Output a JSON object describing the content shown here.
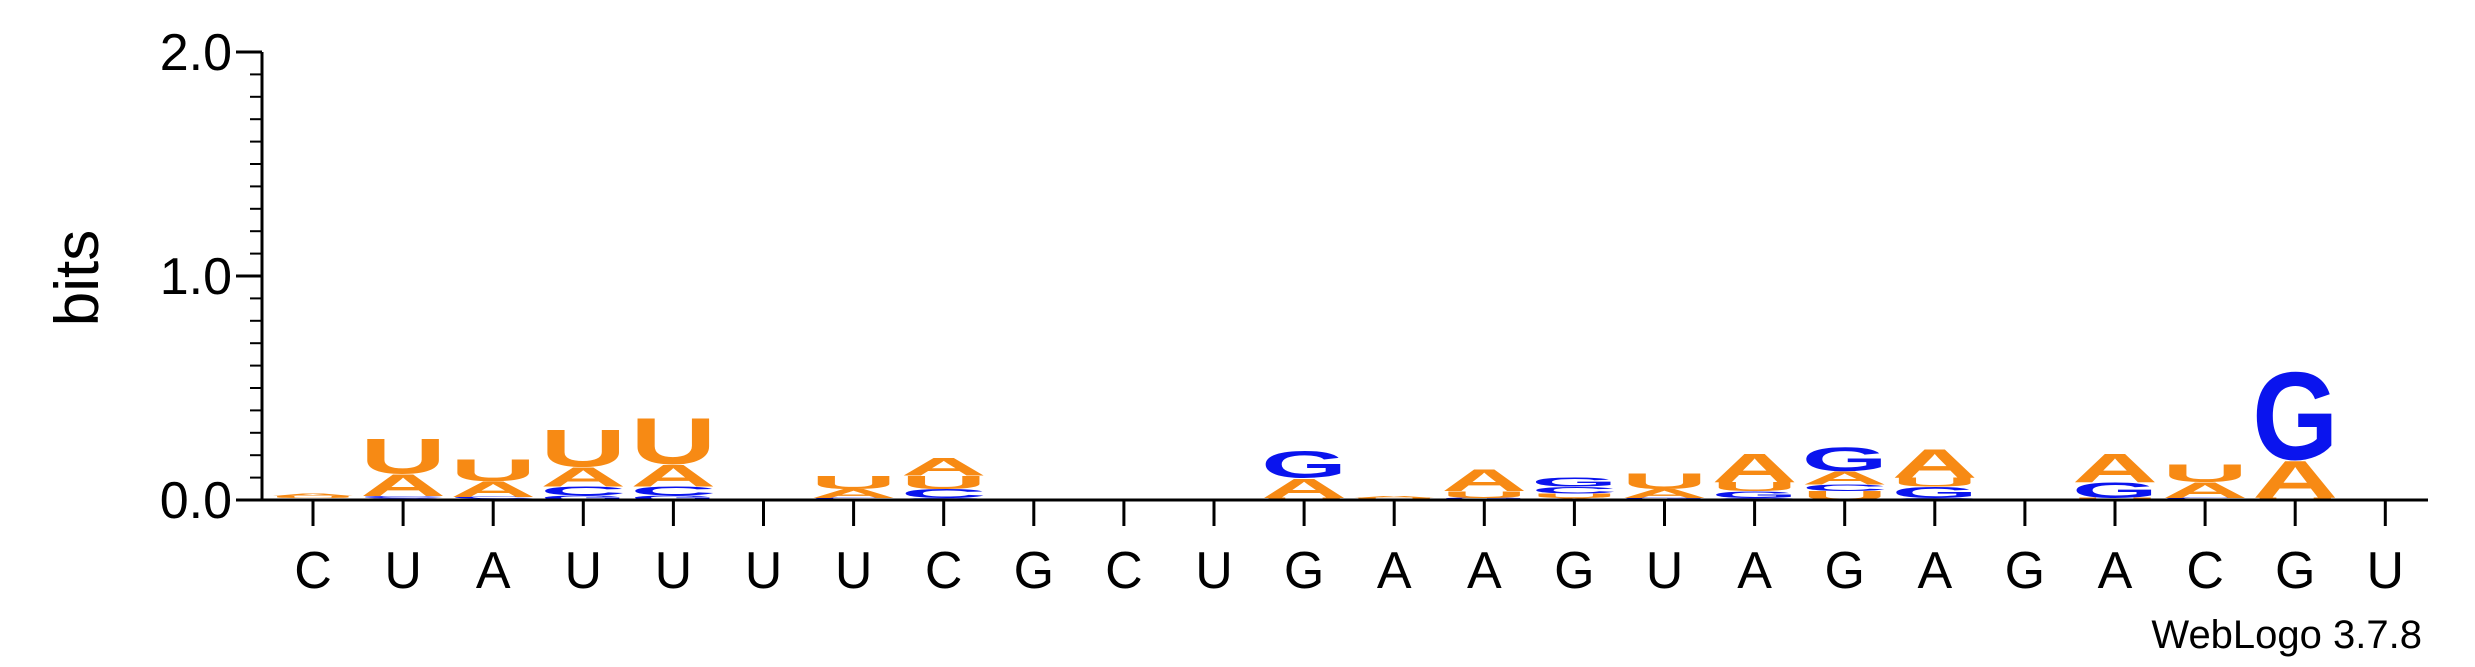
{
  "colors": {
    "A": "#f78a14",
    "U": "#f78a14",
    "G": "#0a14ee",
    "C": "#0a14ee",
    "axis": "#000000"
  },
  "chart_data": {
    "type": "sequence-logo",
    "ylabel": "bits",
    "ylim": [
      0,
      2
    ],
    "yticks": [
      "0.0",
      "1.0",
      "2.0"
    ],
    "xticks": [
      "C",
      "U",
      "A",
      "U",
      "U",
      "U",
      "U",
      "C",
      "G",
      "C",
      "U",
      "G",
      "A",
      "A",
      "G",
      "U",
      "A",
      "G",
      "A",
      "G",
      "A",
      "C",
      "G",
      "U"
    ],
    "credit": "WebLogo 3.7.8",
    "positions": [
      {
        "stack": [
          [
            "C",
            0.004
          ],
          [
            "G",
            0.004
          ],
          [
            "U",
            0.01
          ],
          [
            "A",
            0.012
          ]
        ]
      },
      {
        "stack": [
          [
            "G",
            0.008
          ],
          [
            "C",
            0.01
          ],
          [
            "A",
            0.1
          ],
          [
            "U",
            0.16
          ]
        ]
      },
      {
        "stack": [
          [
            "G",
            0.006
          ],
          [
            "C",
            0.008
          ],
          [
            "A",
            0.07
          ],
          [
            "U",
            0.1
          ]
        ]
      },
      {
        "stack": [
          [
            "G",
            0.02
          ],
          [
            "C",
            0.04
          ],
          [
            "A",
            0.09
          ],
          [
            "U",
            0.17
          ]
        ]
      },
      {
        "stack": [
          [
            "G",
            0.02
          ],
          [
            "C",
            0.04
          ],
          [
            "A",
            0.1
          ],
          [
            "U",
            0.21
          ]
        ]
      },
      {
        "stack": []
      },
      {
        "stack": [
          [
            "G",
            0.004
          ],
          [
            "C",
            0.006
          ],
          [
            "A",
            0.04
          ],
          [
            "U",
            0.06
          ]
        ]
      },
      {
        "stack": [
          [
            "G",
            0.01
          ],
          [
            "C",
            0.04
          ],
          [
            "U",
            0.06
          ],
          [
            "A",
            0.08
          ]
        ]
      },
      {
        "stack": []
      },
      {
        "stack": [
          [
            "A",
            0.003
          ]
        ]
      },
      {
        "stack": []
      },
      {
        "stack": [
          [
            "C",
            0.004
          ],
          [
            "U",
            0.006
          ],
          [
            "A",
            0.09
          ],
          [
            "G",
            0.12
          ]
        ]
      },
      {
        "stack": [
          [
            "C",
            0.002
          ],
          [
            "G",
            0.003
          ],
          [
            "U",
            0.005
          ],
          [
            "A",
            0.01
          ]
        ]
      },
      {
        "stack": [
          [
            "C",
            0.004
          ],
          [
            "G",
            0.006
          ],
          [
            "U",
            0.03
          ],
          [
            "A",
            0.1
          ]
        ]
      },
      {
        "stack": [
          [
            "A",
            0.01
          ],
          [
            "U",
            0.02
          ],
          [
            "C",
            0.03
          ],
          [
            "G",
            0.04
          ]
        ]
      },
      {
        "stack": [
          [
            "C",
            0.004
          ],
          [
            "G",
            0.006
          ],
          [
            "A",
            0.04
          ],
          [
            "U",
            0.07
          ]
        ]
      },
      {
        "stack": [
          [
            "C",
            0.01
          ],
          [
            "G",
            0.03
          ],
          [
            "U",
            0.04
          ],
          [
            "A",
            0.13
          ]
        ]
      },
      {
        "stack": [
          [
            "U",
            0.04
          ],
          [
            "C",
            0.03
          ],
          [
            "A",
            0.06
          ],
          [
            "G",
            0.11
          ]
        ]
      },
      {
        "stack": [
          [
            "C",
            0.01
          ],
          [
            "G",
            0.05
          ],
          [
            "U",
            0.04
          ],
          [
            "A",
            0.13
          ]
        ]
      },
      {
        "stack": []
      },
      {
        "stack": [
          [
            "C",
            0.004
          ],
          [
            "U",
            0.006
          ],
          [
            "G",
            0.07
          ],
          [
            "A",
            0.13
          ]
        ]
      },
      {
        "stack": [
          [
            "G",
            0.004
          ],
          [
            "C",
            0.006
          ],
          [
            "A",
            0.07
          ],
          [
            "U",
            0.08
          ]
        ]
      },
      {
        "stack": [
          [
            "C",
            0.004
          ],
          [
            "U",
            0.006
          ],
          [
            "A",
            0.17
          ],
          [
            "G",
            0.4
          ]
        ]
      },
      {
        "stack": [
          [
            "A",
            0.003
          ],
          [
            "U",
            0.004
          ]
        ]
      }
    ]
  }
}
